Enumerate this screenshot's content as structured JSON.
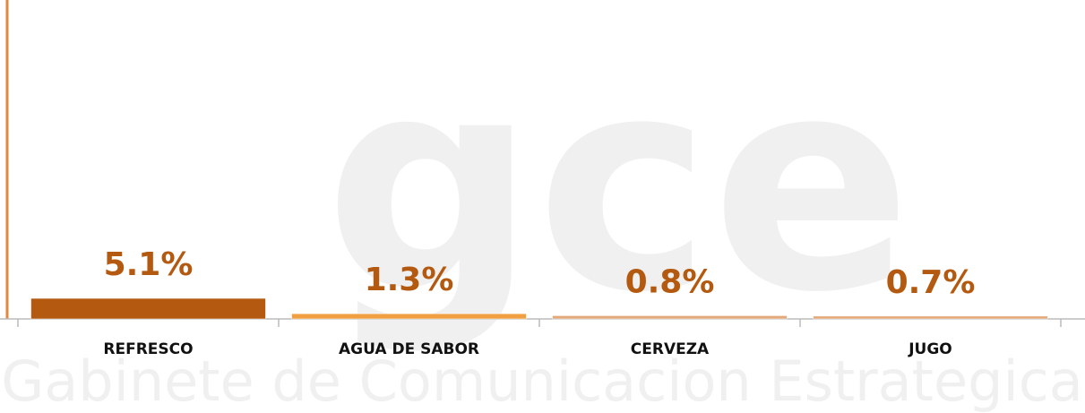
{
  "chart_data": {
    "type": "bar",
    "watermark": "gce",
    "watermark_subtitle": "Gabinete de Comunicacion Estrategica",
    "categories": [
      "REFRESCO",
      "AGUA DE SABOR",
      "CERVEZA",
      "JUGO"
    ],
    "values": [
      5.1,
      1.3,
      0.8,
      0.7
    ],
    "value_labels": [
      "5.1%",
      "1.3%",
      "0.8%",
      "0.7%"
    ],
    "colors": [
      "#b35a10",
      "#f0a040",
      "#e3a97a",
      "#e3a97a"
    ]
  }
}
